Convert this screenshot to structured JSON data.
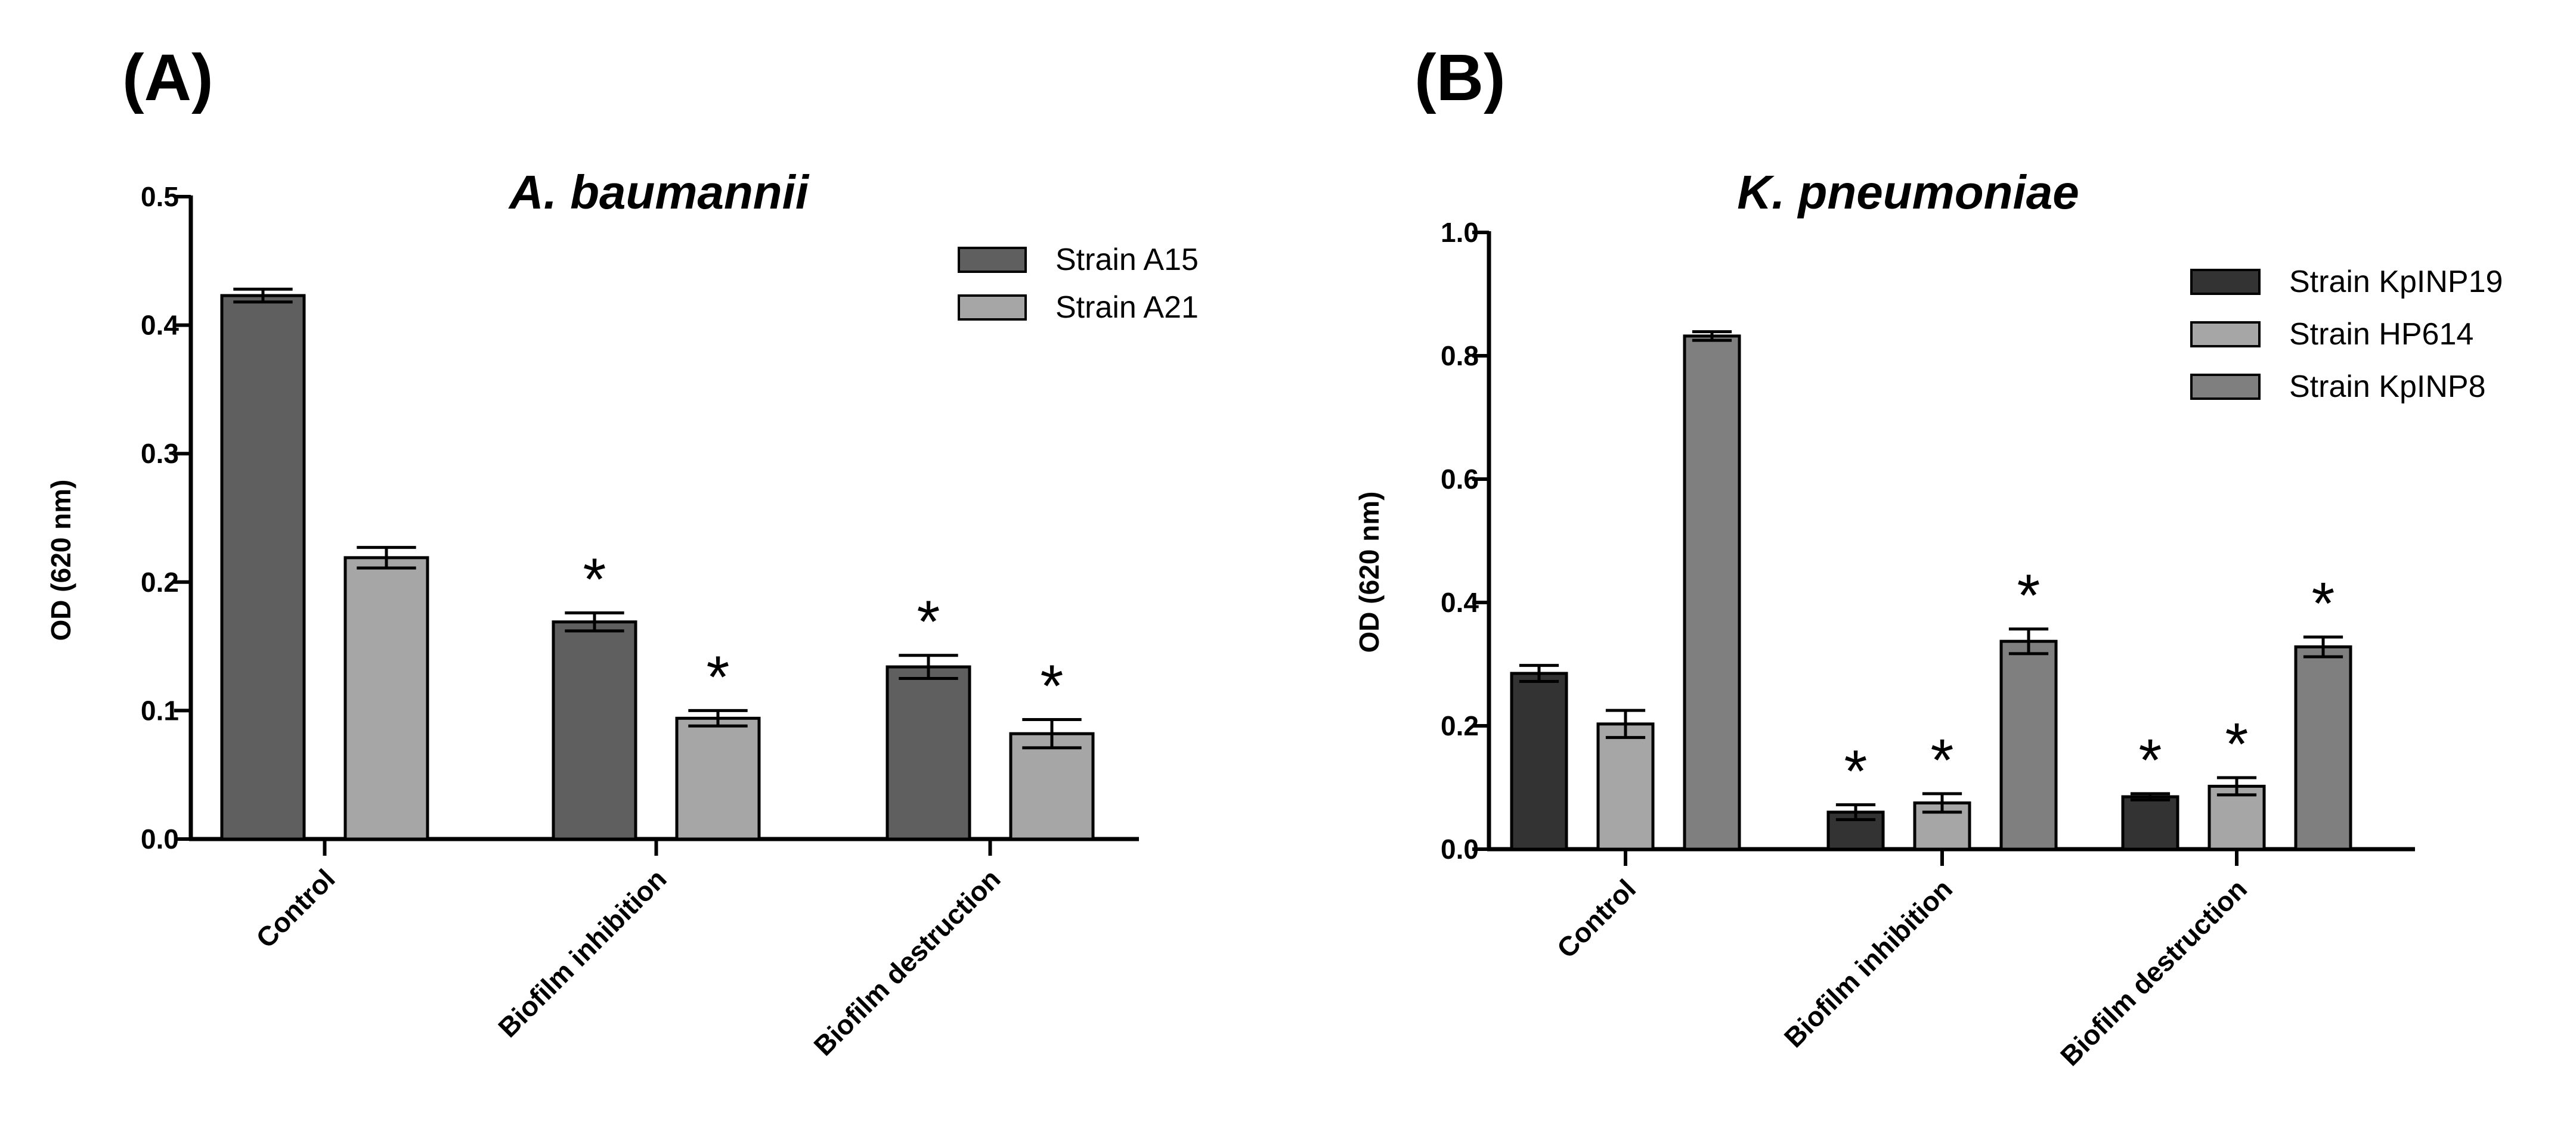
{
  "panels": [
    {
      "label": "(A)",
      "title": "A. baumannii"
    },
    {
      "label": "(B)",
      "title": "K. pneumoniae"
    }
  ],
  "chart_data": [
    {
      "type": "bar",
      "title": "A. baumannii",
      "panel_label": "(A)",
      "xlabel": "",
      "ylabel": "OD (620 nm)",
      "ylim": [
        0,
        0.5
      ],
      "yticks": [
        0.0,
        0.1,
        0.2,
        0.3,
        0.4,
        0.5
      ],
      "ytick_labels": [
        "0.0",
        "0.1",
        "0.2",
        "0.3",
        "0.4",
        "0.5"
      ],
      "categories": [
        "Control",
        "Biofilm inhibition",
        "Biofilm destruction"
      ],
      "legend_position": "top-right",
      "annotations_symbol": "*",
      "series": [
        {
          "name": "Strain A15",
          "color": "#5f5f5f",
          "values": [
            0.423,
            0.169,
            0.134
          ],
          "errors": [
            0.005,
            0.007,
            0.009
          ],
          "significant": [
            false,
            true,
            true
          ]
        },
        {
          "name": "Strain A21",
          "color": "#a6a6a6",
          "values": [
            0.219,
            0.094,
            0.082
          ],
          "errors": [
            0.008,
            0.006,
            0.011
          ],
          "significant": [
            false,
            true,
            true
          ]
        }
      ]
    },
    {
      "type": "bar",
      "title": "K. pneumoniae",
      "panel_label": "(B)",
      "xlabel": "",
      "ylabel": "OD (620 nm)",
      "ylim": [
        0,
        1.0
      ],
      "yticks": [
        0.0,
        0.2,
        0.4,
        0.6,
        0.8,
        1.0
      ],
      "ytick_labels": [
        "0.0",
        "0.2",
        "0.4",
        "0.6",
        "0.8",
        "1.0"
      ],
      "categories": [
        "Control",
        "Biofilm inhibition",
        "Biofilm destruction"
      ],
      "legend_position": "top-right",
      "annotations_symbol": "*",
      "series": [
        {
          "name": "Strain KpINP19",
          "color": "#333333",
          "values": [
            0.285,
            0.06,
            0.085
          ],
          "errors": [
            0.013,
            0.012,
            0.005
          ],
          "significant": [
            false,
            true,
            true
          ]
        },
        {
          "name": "Strain HP614",
          "color": "#a6a6a6",
          "values": [
            0.203,
            0.075,
            0.102
          ],
          "errors": [
            0.022,
            0.015,
            0.014
          ],
          "significant": [
            false,
            true,
            true
          ]
        },
        {
          "name": "Strain KpINP8",
          "color": "#7f7f7f",
          "values": [
            0.832,
            0.337,
            0.328
          ],
          "errors": [
            0.007,
            0.02,
            0.016
          ],
          "significant": [
            false,
            true,
            true
          ]
        }
      ]
    }
  ]
}
